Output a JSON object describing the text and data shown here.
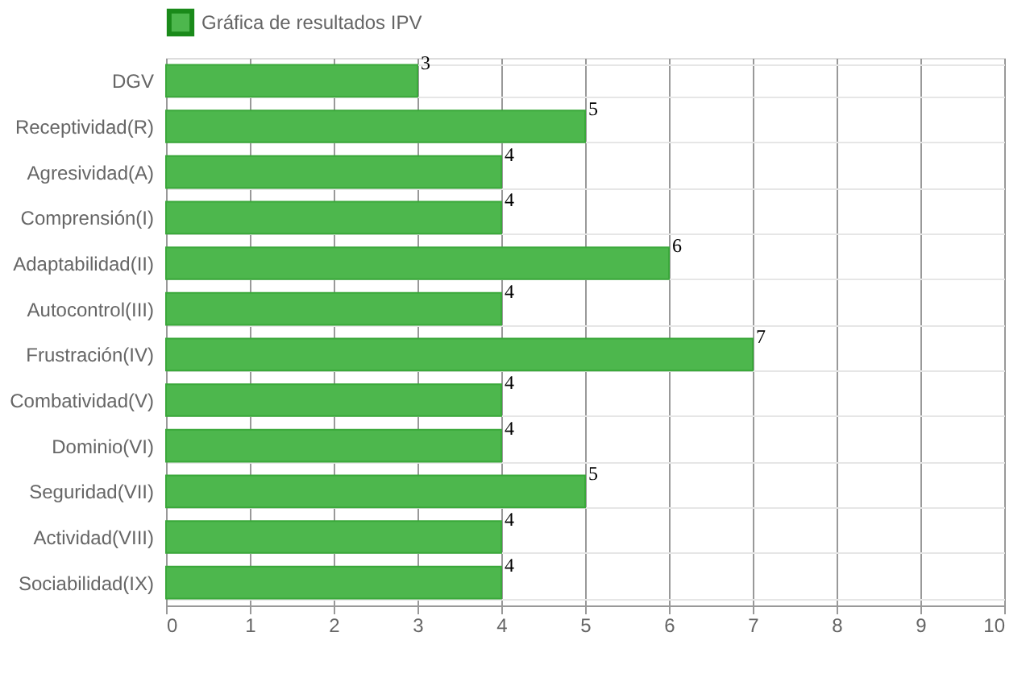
{
  "chart_data": {
    "type": "bar",
    "orientation": "horizontal",
    "categories": [
      "DGV",
      "Receptividad(R)",
      "Agresividad(A)",
      "Comprensión(I)",
      "Adaptabilidad(II)",
      "Autocontrol(III)",
      "Frustración(IV)",
      "Combatividad(V)",
      "Dominio(VI)",
      "Seguridad(VII)",
      "Actividad(VIII)",
      "Sociabilidad(IX)"
    ],
    "series": [
      {
        "name": "Gráfica de resultados IPV",
        "color": "#4db74d",
        "values": [
          3,
          5,
          4,
          4,
          6,
          4,
          7,
          4,
          4,
          5,
          4,
          4
        ]
      }
    ],
    "xlim": [
      0,
      10
    ],
    "xticks": [
      0,
      1,
      2,
      3,
      4,
      5,
      6,
      7,
      8,
      9,
      10
    ],
    "grid": true,
    "legend": "top",
    "data_labels": true
  }
}
